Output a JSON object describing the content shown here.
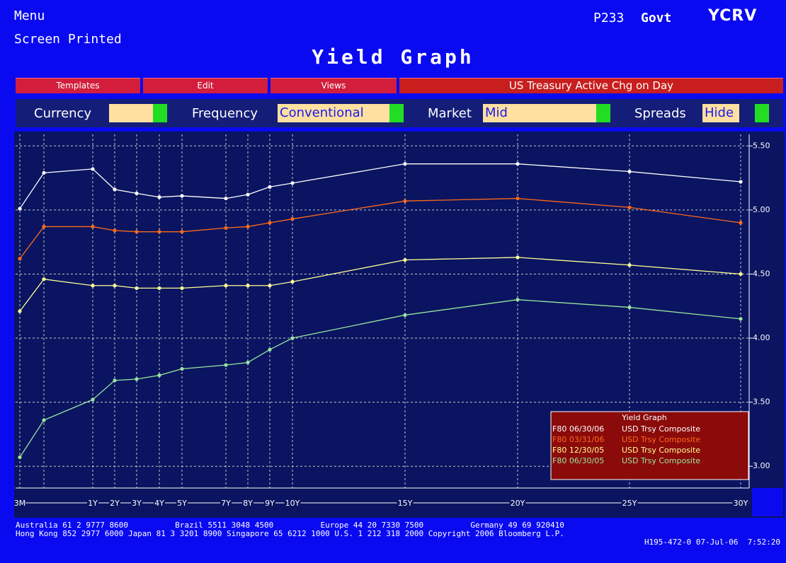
{
  "header": {
    "menu": "Menu",
    "screen_printed": "Screen Printed",
    "page": "P233",
    "market": "Govt",
    "function": "YCRV",
    "title": "Yield Graph"
  },
  "toolbar": {
    "buttons": [
      "Templates",
      "Edit",
      "Views"
    ],
    "status": "US Treasury Active Chg on Day"
  },
  "filters": [
    {
      "label": "Currency",
      "value": ""
    },
    {
      "label": "Frequency",
      "value": "Conventional"
    },
    {
      "label": "Market",
      "value": "Mid"
    },
    {
      "label": "Spreads",
      "value": "Hide"
    }
  ],
  "chart_data": {
    "type": "line",
    "legend_title": "Yield Graph",
    "categories": [
      "3M",
      null,
      "1Y",
      "2Y",
      "3Y",
      "4Y",
      "5Y",
      "7Y",
      "8Y",
      "9Y",
      "10Y",
      "15Y",
      "20Y",
      "25Y",
      "30Y"
    ],
    "ylim": [
      2.83,
      5.59
    ],
    "yticks": [
      {
        "value": 3,
        "label": "3.00"
      },
      {
        "value": 3.5,
        "label": "3.50"
      },
      {
        "value": 4,
        "label": "4.00"
      },
      {
        "value": 4.5,
        "label": "4.50"
      },
      {
        "value": 5,
        "label": "5.00"
      },
      {
        "value": 5.5,
        "label": "5.50"
      }
    ],
    "grid": true,
    "series": [
      {
        "name": "F80 06/30/06",
        "source": "USD Trsy Composite",
        "color": "#ffffff",
        "values": [
          5.01,
          5.29,
          5.32,
          5.16,
          5.13,
          5.1,
          5.11,
          5.09,
          5.12,
          5.18,
          5.21,
          5.36,
          5.36,
          5.3,
          5.22
        ]
      },
      {
        "name": "F80 03/31/06",
        "source": "USD Trsy Composite",
        "color": "#ff6a1a",
        "values": [
          4.62,
          4.87,
          4.87,
          4.84,
          4.83,
          4.83,
          4.83,
          4.86,
          4.87,
          4.9,
          4.93,
          5.07,
          5.09,
          5.02,
          4.9
        ]
      },
      {
        "name": "F80 12/30/05",
        "source": "USD Trsy Composite",
        "color": "#ffff99",
        "values": [
          4.21,
          4.46,
          4.41,
          4.41,
          4.39,
          4.39,
          4.39,
          4.41,
          4.41,
          4.41,
          4.44,
          4.61,
          4.63,
          4.57,
          4.5
        ]
      },
      {
        "name": "F80 06/30/05",
        "source": "USD Trsy Composite",
        "color": "#99e6a0",
        "values": [
          3.07,
          3.36,
          3.52,
          3.67,
          3.68,
          3.71,
          3.76,
          3.79,
          3.81,
          3.91,
          4.0,
          4.18,
          4.3,
          4.24,
          4.15
        ]
      }
    ]
  },
  "footer": [
    "Australia 61 2 9777 8600          Brazil 5511 3048 4500          Europe 44 20 7330 7500          Germany 49 69 920410",
    "Hong Kong 852 2977 6000 Japan 81 3 3201 8900 Singapore 65 6212 1000 U.S. 1 212 318 2000 Copyright 2006 Bloomberg L.P.",
    "H195-472-0 07-Jul-06  7:52:20"
  ]
}
